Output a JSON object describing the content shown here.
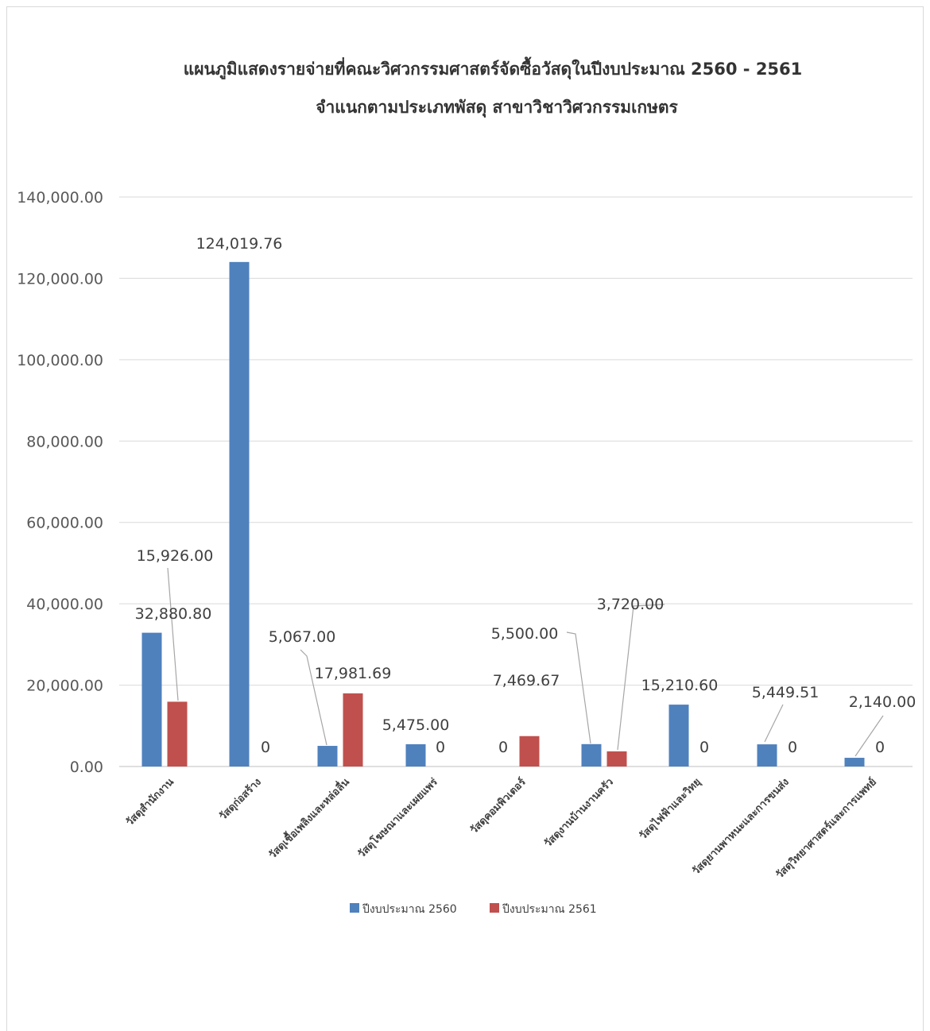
{
  "chart_data": {
    "type": "bar",
    "title": "แผนภูมิแสดงรายจ่ายที่คณะวิศวกรรมศาสตร์จัดซื้อวัสดุในปีงบประมาณ 2560 - 2561",
    "subtitle": "จำแนกตามประเภทพัสดุ สาขาวิชาวิศวกรรมเกษตร",
    "categories": [
      "วัสดุสำนักงาน",
      "วัสดุก่อสร้าง",
      "วัสดุเชื้อเพลิงและหล่อลื่น",
      "วัสดุโฆษณาและเผยแพร่",
      "วัสดุคอมพิวเตอร์",
      "วัสดุงานบ้านงานครัว",
      "วัสดุไฟฟ้าและวิทยุ",
      "วัสดุยานพาหนะและการขนส่ง",
      "วัสดุวิทยาศาสตร์และการแพทย์"
    ],
    "series": [
      {
        "name": "ปีงบประมาณ 2560",
        "color": "#4f81bd",
        "values": [
          32880.8,
          124019.76,
          5067.0,
          5475.0,
          0,
          5500.0,
          15210.6,
          5449.51,
          2140.0
        ],
        "labels": [
          "32,880.80",
          "124,019.76",
          "5,067.00",
          "5,475.00",
          "0",
          "5,500.00",
          "15,210.60",
          "5,449.51",
          "2,140.00"
        ]
      },
      {
        "name": "ปีงบประมาณ 2561",
        "color": "#c0504d",
        "values": [
          15926.0,
          0,
          17981.69,
          0,
          7469.67,
          3720.0,
          0,
          0,
          0
        ],
        "labels": [
          "15,926.00",
          "0",
          "17,981.69",
          "0",
          "7,469.67",
          "3,720.00",
          "0",
          "0",
          "0"
        ]
      }
    ],
    "y_ticks": [
      "0.00",
      "20,000.00",
      "40,000.00",
      "60,000.00",
      "80,000.00",
      "100,000.00",
      "120,000.00",
      "140,000.00"
    ],
    "ylim": [
      0,
      140000
    ],
    "grid": true,
    "legend_position": "bottom"
  }
}
